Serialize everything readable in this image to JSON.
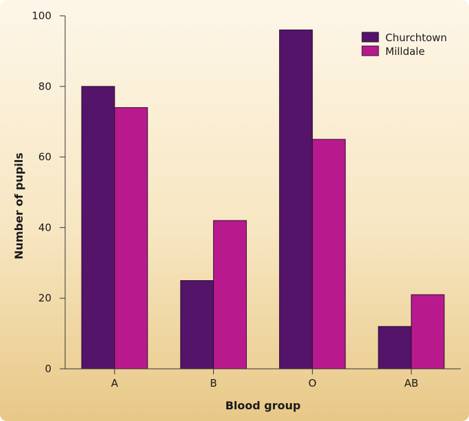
{
  "chart_data": {
    "type": "bar",
    "categories": [
      "A",
      "B",
      "O",
      "AB"
    ],
    "series": [
      {
        "name": "Churchtown",
        "values": [
          80,
          25,
          96,
          12
        ],
        "color": "#54146a"
      },
      {
        "name": "Milldale",
        "values": [
          74,
          42,
          65,
          21
        ],
        "color": "#b81a8e"
      }
    ],
    "xlabel": "Blood group",
    "ylabel": "Number of pupils",
    "ylim": [
      0,
      100
    ],
    "yticks": [
      0,
      20,
      40,
      60,
      80,
      100
    ],
    "grid": false,
    "legend_position": "top-right"
  }
}
